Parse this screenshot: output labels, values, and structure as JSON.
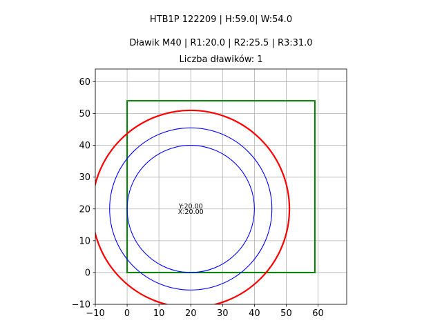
{
  "figure": {
    "suptitle_line1": "HTB1P 122209 | H:59.0| W:54.0",
    "suptitle_line2": "Dławik M40 | R1:20.0 | R2:25.5 | R3:31.0"
  },
  "chart_data": {
    "type": "line",
    "title": "Liczba dławików: 1",
    "xlabel": "",
    "ylabel": "",
    "xlim": [
      -10,
      69
    ],
    "ylim": [
      -10,
      64
    ],
    "grid": true,
    "xticks": [
      -10,
      0,
      10,
      20,
      30,
      40,
      50,
      60
    ],
    "yticks": [
      -10,
      0,
      10,
      20,
      30,
      40,
      50,
      60
    ],
    "xtick_labels": [
      "−10",
      "0",
      "10",
      "20",
      "30",
      "40",
      "50",
      "60"
    ],
    "ytick_labels": [
      "−10",
      "0",
      "10",
      "20",
      "30",
      "40",
      "50",
      "60"
    ],
    "rectangle": {
      "x": 0,
      "y": 0,
      "width": 59,
      "height": 54,
      "color": "#008000"
    },
    "circles": [
      {
        "cx": 20,
        "cy": 20,
        "r": 20.0,
        "color": "#0000ff"
      },
      {
        "cx": 20,
        "cy": 20,
        "r": 25.5,
        "color": "#0000ff"
      },
      {
        "cx": 20,
        "cy": 20,
        "r": 31.0,
        "color": "#ff0000"
      }
    ],
    "annotations": [
      {
        "text": "Y:20.00",
        "x": 20,
        "y": 20
      },
      {
        "text": "X:20.00",
        "x": 20,
        "y": 20
      }
    ]
  }
}
